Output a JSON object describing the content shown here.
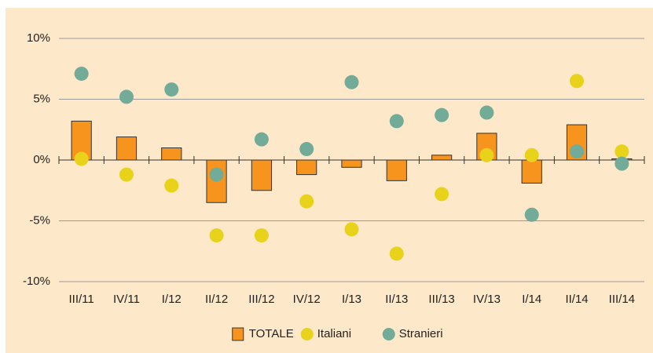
{
  "chart_data": {
    "type": "bar",
    "categories": [
      "III/11",
      "IV/11",
      "I/12",
      "II/12",
      "III/12",
      "IV/12",
      "I/13",
      "II/13",
      "III/13",
      "IV/13",
      "I/14",
      "II/14",
      "III/14"
    ],
    "series": [
      {
        "name": "TOTALE",
        "type": "bar",
        "color": "#f7941d",
        "values": [
          3.2,
          1.9,
          1.0,
          -3.5,
          -2.5,
          -1.2,
          -0.6,
          -1.7,
          0.4,
          2.2,
          -1.9,
          2.9,
          0.1
        ]
      },
      {
        "name": "Italiani",
        "type": "scatter",
        "color": "#e8d21a",
        "values": [
          0.1,
          -1.2,
          -2.1,
          -6.2,
          -6.2,
          -3.4,
          -5.7,
          -7.7,
          -2.8,
          0.4,
          0.4,
          6.5,
          0.7
        ]
      },
      {
        "name": "Stranieri",
        "type": "scatter",
        "color": "#72ab97",
        "values": [
          7.1,
          5.2,
          5.8,
          -1.2,
          1.7,
          0.9,
          6.4,
          3.2,
          3.7,
          3.9,
          -4.5,
          0.7,
          -0.3
        ]
      }
    ],
    "ylim": [
      -10,
      10
    ],
    "yticks": [
      {
        "value": -10,
        "label": "-10%"
      },
      {
        "value": -5,
        "label": "-5%"
      },
      {
        "value": 0,
        "label": "0%"
      },
      {
        "value": 5,
        "label": "5%"
      },
      {
        "value": 10,
        "label": "10%"
      }
    ],
    "grid": true,
    "legend": "bottom"
  }
}
